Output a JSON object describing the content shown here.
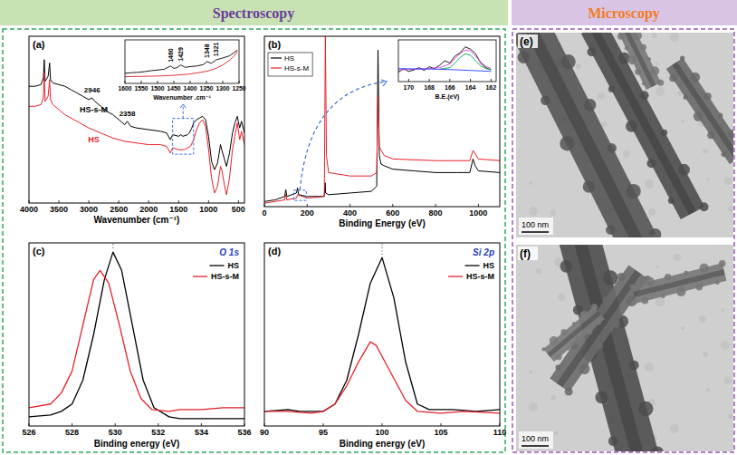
{
  "headers": [
    "Spectroscopy",
    "Microscopy"
  ],
  "chart_data": [
    {
      "type": "line",
      "panel": "(a)",
      "xlabel": "Wavenumber (cm⁻¹)",
      "xlim": [
        4000,
        400
      ],
      "xticks": [
        4000,
        3500,
        3000,
        2500,
        2000,
        1500,
        1000,
        500
      ],
      "ylim": [
        0,
        100
      ],
      "tick_labels": "x",
      "annotations": [
        2946,
        2358
      ],
      "series": [
        {
          "name": "HS-s-M",
          "color": "#000000",
          "x": [
            4000,
            3900,
            3800,
            3760,
            3745,
            3730,
            3680,
            3655,
            3640,
            3600,
            3500,
            3400,
            3300,
            3200,
            3100,
            3000,
            2946,
            2900,
            2800,
            2700,
            2600,
            2500,
            2400,
            2358,
            2300,
            2200,
            2000,
            1800,
            1700,
            1640,
            1600,
            1500,
            1460,
            1429,
            1348,
            1321,
            1280,
            1250,
            1200,
            1150,
            1100,
            1050,
            1000,
            950,
            900,
            850,
            800,
            780,
            700,
            650,
            600,
            560,
            520,
            480,
            450,
            400
          ],
          "values": [
            70,
            70,
            71,
            75,
            86,
            73,
            76,
            84,
            74,
            72,
            71,
            70,
            68,
            66,
            64,
            62,
            63,
            61,
            58,
            55,
            53,
            50,
            47,
            49,
            46,
            45,
            44,
            43,
            42,
            38,
            41,
            40,
            41,
            40,
            41,
            42,
            45,
            48,
            50,
            51,
            52,
            50,
            40,
            25,
            20,
            24,
            35,
            32,
            22,
            30,
            42,
            48,
            52,
            45,
            49,
            42
          ]
        },
        {
          "name": "HS",
          "color": "#e8202a",
          "x": [
            4000,
            3900,
            3800,
            3760,
            3745,
            3730,
            3680,
            3655,
            3640,
            3600,
            3500,
            3400,
            3200,
            3000,
            2800,
            2600,
            2400,
            2200,
            2000,
            1800,
            1700,
            1640,
            1600,
            1500,
            1400,
            1300,
            1250,
            1200,
            1150,
            1100,
            1050,
            1000,
            950,
            900,
            850,
            800,
            780,
            720,
            700,
            650,
            600,
            560,
            520,
            480,
            450,
            400
          ],
          "values": [
            58,
            58,
            59,
            63,
            78,
            61,
            64,
            74,
            62,
            59,
            56,
            53,
            49,
            45,
            42,
            39,
            37,
            36,
            35,
            35,
            34,
            30,
            33,
            32,
            32,
            34,
            38,
            44,
            48,
            50,
            46,
            32,
            15,
            6,
            10,
            22,
            20,
            8,
            5,
            15,
            32,
            40,
            48,
            38,
            43,
            35
          ]
        }
      ]
    },
    {
      "type": "line",
      "xlabel": "Wavenumber .cm⁻¹",
      "xlim": [
        1600,
        1250
      ],
      "xticks": [
        1600,
        1550,
        1500,
        1450,
        1400,
        1350,
        1300,
        1250
      ],
      "ylim": [
        0,
        130
      ],
      "tick_labels": "x",
      "annotations": [
        1460,
        1429,
        1348,
        1321
      ],
      "series": [
        {
          "color": "#000000",
          "x": [
            1600,
            1580,
            1560,
            1540,
            1520,
            1500,
            1480,
            1460,
            1450,
            1440,
            1429,
            1415,
            1400,
            1380,
            1360,
            1348,
            1335,
            1321,
            1300,
            1280,
            1265,
            1255
          ],
          "values": [
            30,
            32,
            33,
            35,
            38,
            40,
            42,
            52,
            45,
            47,
            55,
            48,
            50,
            52,
            56,
            65,
            60,
            70,
            76,
            82,
            92,
            100
          ]
        },
        {
          "color": "#e8202a",
          "x": [
            1600,
            1550,
            1500,
            1450,
            1400,
            1350,
            1320,
            1300,
            1280,
            1265,
            1255
          ],
          "values": [
            20,
            21,
            22,
            24,
            28,
            36,
            45,
            55,
            68,
            82,
            96
          ]
        }
      ]
    },
    {
      "type": "line",
      "panel": "(b)",
      "xlabel": "Binding Energy (eV)",
      "xlim": [
        0,
        1100
      ],
      "xticks": [
        0,
        200,
        400,
        600,
        800,
        1000
      ],
      "ylim": [
        0,
        100
      ],
      "tick_labels": "x",
      "legend": "upper left",
      "series": [
        {
          "name": "HS",
          "color": "#000000",
          "x": [
            0,
            50,
            95,
            100,
            105,
            150,
            155,
            160,
            200,
            280,
            284,
            286,
            300,
            400,
            500,
            525,
            531,
            537,
            545,
            560,
            600,
            700,
            800,
            900,
            960,
            975,
            985,
            1000,
            1100
          ],
          "values": [
            3,
            4,
            6,
            10,
            6,
            8,
            11,
            7,
            6,
            6,
            14,
            8,
            7,
            8,
            9,
            12,
            92,
            30,
            25,
            24,
            22,
            21,
            20,
            20,
            20,
            28,
            24,
            21,
            20
          ]
        },
        {
          "name": "HS-s-M",
          "color": "#e8202a",
          "x": [
            0,
            95,
            100,
            105,
            150,
            155,
            200,
            280,
            285,
            290,
            300,
            400,
            500,
            525,
            531,
            537,
            560,
            600,
            800,
            960,
            975,
            1000,
            1100
          ],
          "values": [
            2,
            4,
            7,
            4,
            5,
            7,
            5,
            6,
            100,
            30,
            20,
            18,
            18,
            20,
            65,
            35,
            30,
            28,
            27,
            27,
            33,
            28,
            27
          ]
        }
      ]
    },
    {
      "type": "line",
      "xlabel": "B.E.(eV)",
      "xlim": [
        171,
        161.5
      ],
      "xticks": [
        170,
        168,
        166,
        164,
        162
      ],
      "ylim": [
        0,
        90
      ],
      "tick_labels": "x",
      "series": [
        {
          "color": "#000000",
          "x": [
            171,
            170.5,
            170,
            169.5,
            169,
            168.5,
            168,
            167.5,
            167,
            166.5,
            166,
            165.5,
            165,
            164.5,
            164,
            163.5,
            163,
            162.5,
            162
          ],
          "values": [
            20,
            28,
            22,
            25,
            30,
            24,
            32,
            28,
            35,
            45,
            40,
            55,
            62,
            75,
            70,
            60,
            40,
            30,
            25
          ]
        },
        {
          "color": "#e040e0",
          "x": [
            171,
            169,
            167,
            166,
            165.5,
            165,
            164.5,
            164,
            163.5,
            163,
            162.5,
            162
          ],
          "values": [
            25,
            27,
            30,
            38,
            50,
            60,
            68,
            66,
            55,
            42,
            33,
            28
          ]
        },
        {
          "color": "#00a651",
          "x": [
            167,
            166,
            165.5,
            165,
            164.5,
            164,
            163.5,
            163,
            162.5,
            162
          ],
          "values": [
            27,
            30,
            40,
            52,
            60,
            57,
            45,
            34,
            28,
            26
          ]
        },
        {
          "color": "#2040ff",
          "x": [
            171,
            168,
            166,
            164,
            162
          ],
          "values": [
            28,
            27,
            26,
            24,
            22
          ]
        }
      ]
    },
    {
      "type": "line",
      "panel": "(c)",
      "title": "O 1s",
      "xlabel": "Binding energy (eV)",
      "xlim": [
        526,
        536
      ],
      "xticks": [
        526,
        528,
        530,
        532,
        534,
        536
      ],
      "ylim": [
        0,
        100
      ],
      "tick_labels": "x",
      "legend": "upper right",
      "series": [
        {
          "name": "HS",
          "color": "#000000",
          "x": [
            526,
            527,
            527.5,
            528,
            528.5,
            529,
            529.5,
            529.9,
            530.3,
            530.8,
            531.3,
            531.8,
            532.5,
            533,
            534,
            535,
            536
          ],
          "values": [
            5,
            6,
            8,
            12,
            25,
            50,
            80,
            95,
            85,
            55,
            25,
            10,
            5,
            4,
            4,
            4,
            4
          ]
        },
        {
          "name": "HS-s-M",
          "color": "#e8202a",
          "x": [
            526,
            527,
            527.5,
            528,
            528.5,
            529,
            529.3,
            529.7,
            530.2,
            530.7,
            531.2,
            531.7,
            532.5,
            533,
            534,
            535,
            536
          ],
          "values": [
            10,
            12,
            18,
            30,
            55,
            80,
            85,
            78,
            55,
            30,
            15,
            9,
            8,
            9,
            9,
            10,
            10
          ]
        }
      ]
    },
    {
      "type": "line",
      "panel": "(d)",
      "title": "Si 2p",
      "xlabel": "Binding energy (eV)",
      "xlim": [
        90,
        110
      ],
      "xticks": [
        90,
        95,
        100,
        105,
        110
      ],
      "ylim": [
        0,
        100
      ],
      "tick_labels": "x",
      "legend": "upper right",
      "series": [
        {
          "name": "HS",
          "color": "#000000",
          "x": [
            90,
            92,
            93,
            95,
            96,
            97,
            98,
            99,
            100,
            101,
            102,
            103,
            104,
            106,
            108,
            110
          ],
          "values": [
            8,
            9,
            8,
            8,
            12,
            25,
            50,
            78,
            92,
            70,
            35,
            12,
            9,
            9,
            8,
            9
          ]
        },
        {
          "name": "HS-s-M",
          "color": "#e8202a",
          "x": [
            90,
            92,
            94,
            95,
            96,
            97,
            98,
            99,
            99.5,
            100,
            101,
            102,
            103,
            105,
            107,
            110
          ],
          "values": [
            8,
            8,
            7,
            8,
            12,
            22,
            35,
            46,
            44,
            38,
            26,
            14,
            8,
            7,
            8,
            7
          ]
        }
      ]
    }
  ],
  "images": [
    {
      "panel": "(e)",
      "scale_bar": "100 nm"
    },
    {
      "panel": "(f)",
      "scale_bar": "100 nm"
    }
  ]
}
